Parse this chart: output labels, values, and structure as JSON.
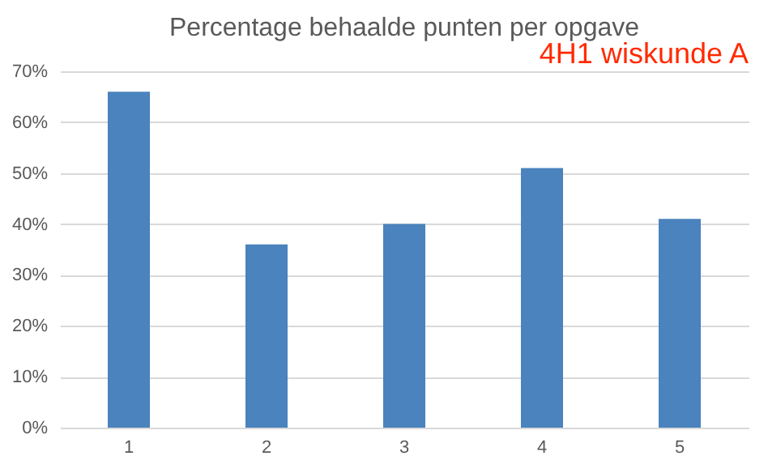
{
  "chart_data": {
    "type": "bar",
    "title": "Percentage behaalde punten per opgave",
    "annotations": [
      "4H1 wiskunde A"
    ],
    "categories": [
      "1",
      "2",
      "3",
      "4",
      "5"
    ],
    "values": [
      66,
      36,
      40,
      51,
      41
    ],
    "color": "#4a83bd",
    "ylim": [
      0,
      70
    ],
    "yticks": [
      {
        "value": 0,
        "label": "0%"
      },
      {
        "value": 10,
        "label": "10%"
      },
      {
        "value": 20,
        "label": "20%"
      },
      {
        "value": 30,
        "label": "30%"
      },
      {
        "value": 40,
        "label": "40%"
      },
      {
        "value": 50,
        "label": "50%"
      },
      {
        "value": 60,
        "label": "60%"
      },
      {
        "value": 70,
        "label": "70%"
      }
    ],
    "grid": "y"
  }
}
